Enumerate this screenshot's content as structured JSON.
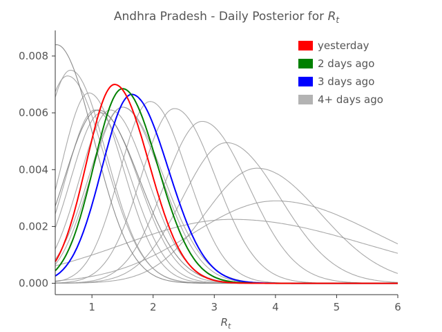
{
  "chart_data": {
    "type": "line",
    "title": "Andhra Pradesh - Daily Posterior for",
    "title_symbol": "R",
    "title_subscript": "t",
    "xlabel_symbol": "R",
    "xlabel_subscript": "t",
    "xlim": [
      0.4,
      6.0
    ],
    "ylim": [
      -0.0004,
      0.0089
    ],
    "x_ticks": [
      1,
      2,
      3,
      4,
      5,
      6
    ],
    "y_ticks": [
      0.0,
      0.002,
      0.004,
      0.006,
      0.008
    ],
    "y_tick_labels": [
      "0.000",
      "0.002",
      "0.004",
      "0.006",
      "0.008"
    ],
    "legend_position": "top-right",
    "legend": [
      {
        "label": "yesterday",
        "color": "#ff0000"
      },
      {
        "label": "2 days ago",
        "color": "#008000"
      },
      {
        "label": "3 days ago",
        "color": "#0000ff"
      },
      {
        "label": "4+ days ago",
        "color": "#b3b3b3"
      }
    ],
    "series": [
      {
        "group": "4+ days ago",
        "color": "#999999",
        "peak_x": 3.3,
        "peak_y": 0.00225,
        "width": 1.8
      },
      {
        "group": "4+ days ago",
        "color": "#999999",
        "peak_x": 4.0,
        "peak_y": 0.0029,
        "width": 1.35
      },
      {
        "group": "4+ days ago",
        "color": "#999999",
        "peak_x": 3.7,
        "peak_y": 0.00405,
        "width": 0.85
      },
      {
        "group": "4+ days ago",
        "color": "#999999",
        "peak_x": 3.2,
        "peak_y": 0.00495,
        "width": 0.72
      },
      {
        "group": "4+ days ago",
        "color": "#999999",
        "peak_x": 2.8,
        "peak_y": 0.0057,
        "width": 0.62
      },
      {
        "group": "4+ days ago",
        "color": "#999999",
        "peak_x": 2.35,
        "peak_y": 0.00615,
        "width": 0.55
      },
      {
        "group": "4+ days ago",
        "color": "#999999",
        "peak_x": 1.95,
        "peak_y": 0.0064,
        "width": 0.5
      },
      {
        "group": "4+ days ago",
        "color": "#999999",
        "peak_x": 1.5,
        "peak_y": 0.0062,
        "width": 0.52
      },
      {
        "group": "4+ days ago",
        "color": "#999999",
        "peak_x": 1.3,
        "peak_y": 0.0061,
        "width": 0.5
      },
      {
        "group": "4+ days ago",
        "color": "#999999",
        "peak_x": 1.15,
        "peak_y": 0.006,
        "width": 0.5
      },
      {
        "group": "4+ days ago",
        "color": "#999999",
        "peak_x": 1.05,
        "peak_y": 0.0061,
        "width": 0.48
      },
      {
        "group": "4+ days ago",
        "color": "#999999",
        "peak_x": 0.95,
        "peak_y": 0.0067,
        "width": 0.46
      },
      {
        "group": "4+ days ago",
        "color": "#777777",
        "peak_x": 1.1,
        "peak_y": 0.0061,
        "width": 0.55
      },
      {
        "group": "4+ days ago",
        "color": "#999999",
        "peak_x": 0.65,
        "peak_y": 0.0075,
        "width": 0.48
      },
      {
        "group": "4+ days ago",
        "color": "#999999",
        "peak_x": 0.6,
        "peak_y": 0.0073,
        "width": 0.5
      },
      {
        "group": "4+ days ago",
        "color": "#777777",
        "peak_x": 0.42,
        "peak_y": 0.0084,
        "width": 0.5
      },
      {
        "group": "4+ days ago",
        "color": "#999999",
        "peak_x": 1.5,
        "peak_y": 0.0062,
        "width": 0.55
      },
      {
        "group": "3 days ago",
        "color": "#0000ff",
        "peak_x": 1.65,
        "peak_y": 0.00665,
        "width": 0.49
      },
      {
        "group": "2 days ago",
        "color": "#008000",
        "peak_x": 1.5,
        "peak_y": 0.00685,
        "width": 0.47
      },
      {
        "group": "yesterday",
        "color": "#ff0000",
        "peak_x": 1.37,
        "peak_y": 0.007,
        "width": 0.46
      }
    ]
  }
}
